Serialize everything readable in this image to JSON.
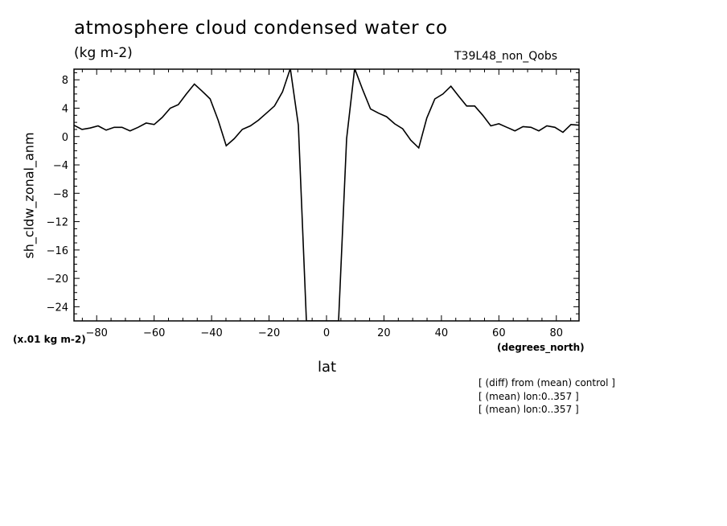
{
  "chart_data": {
    "type": "line",
    "title": "atmosphere cloud condensed water co",
    "units": "(kg m-2)",
    "run_label": "T39L48_non_Qobs",
    "ylabel": "sh_cldw_zonal_anm",
    "xlabel": "lat",
    "x_units": "(degrees_north)",
    "scale_note": "(x.01 kg m-2)",
    "notes": [
      "[ (diff) from (mean) control ]",
      "[ (mean) lon:0..357 ]",
      "[ (mean) lon:0..357 ]"
    ],
    "xlim": [
      -87.9,
      87.9
    ],
    "ylim": [
      -26,
      9.5
    ],
    "x_ticks": [
      -80,
      -60,
      -40,
      -20,
      0,
      20,
      40,
      60,
      80
    ],
    "y_ticks": [
      8,
      4,
      0,
      -4,
      -8,
      -12,
      -16,
      -20,
      -24
    ],
    "x_minor_step": 5,
    "y_minor_step": 1,
    "series": [
      {
        "x": [
          -87.9,
          -85.1,
          -82.3,
          -79.5,
          -76.7,
          -73.9,
          -71.2,
          -68.4,
          -65.6,
          -62.8,
          -60.0,
          -57.2,
          -54.4,
          -51.6,
          -48.8,
          -46.0,
          -43.3,
          -40.5,
          -37.7,
          -34.9,
          -32.1,
          -29.3,
          -26.5,
          -23.7,
          -20.9,
          -18.1,
          -15.3,
          -12.6,
          -9.8,
          -7.0,
          -4.2,
          -1.4,
          1.4,
          4.2,
          7.0,
          9.8,
          12.6,
          15.3,
          18.1,
          20.9,
          23.7,
          26.5,
          29.3,
          32.1,
          34.9,
          37.7,
          40.5,
          43.3,
          46.0,
          48.8,
          51.6,
          54.4,
          57.2,
          60.0,
          62.8,
          65.6,
          68.4,
          71.2,
          73.9,
          76.7,
          79.5,
          82.3,
          85.1,
          87.9
        ],
        "y": [
          1.6,
          1.0,
          1.2,
          1.5,
          0.9,
          1.3,
          1.3,
          0.8,
          1.3,
          1.9,
          1.7,
          2.7,
          4.0,
          4.5,
          6.0,
          7.4,
          6.4,
          5.3,
          2.3,
          -1.3,
          -0.3,
          1.0,
          1.5,
          2.3,
          3.3,
          4.3,
          6.3,
          9.6,
          1.6,
          -26,
          -26,
          -26,
          -26,
          -26,
          -0.3,
          9.6,
          6.6,
          3.9,
          3.3,
          2.8,
          1.8,
          1.1,
          -0.5,
          -1.6,
          2.6,
          5.3,
          6.0,
          7.1,
          5.7,
          4.3,
          4.3,
          3.0,
          1.5,
          1.8,
          1.3,
          0.8,
          1.4,
          1.3,
          0.8,
          1.5,
          1.3,
          0.6,
          1.7,
          1.6
        ]
      }
    ]
  }
}
